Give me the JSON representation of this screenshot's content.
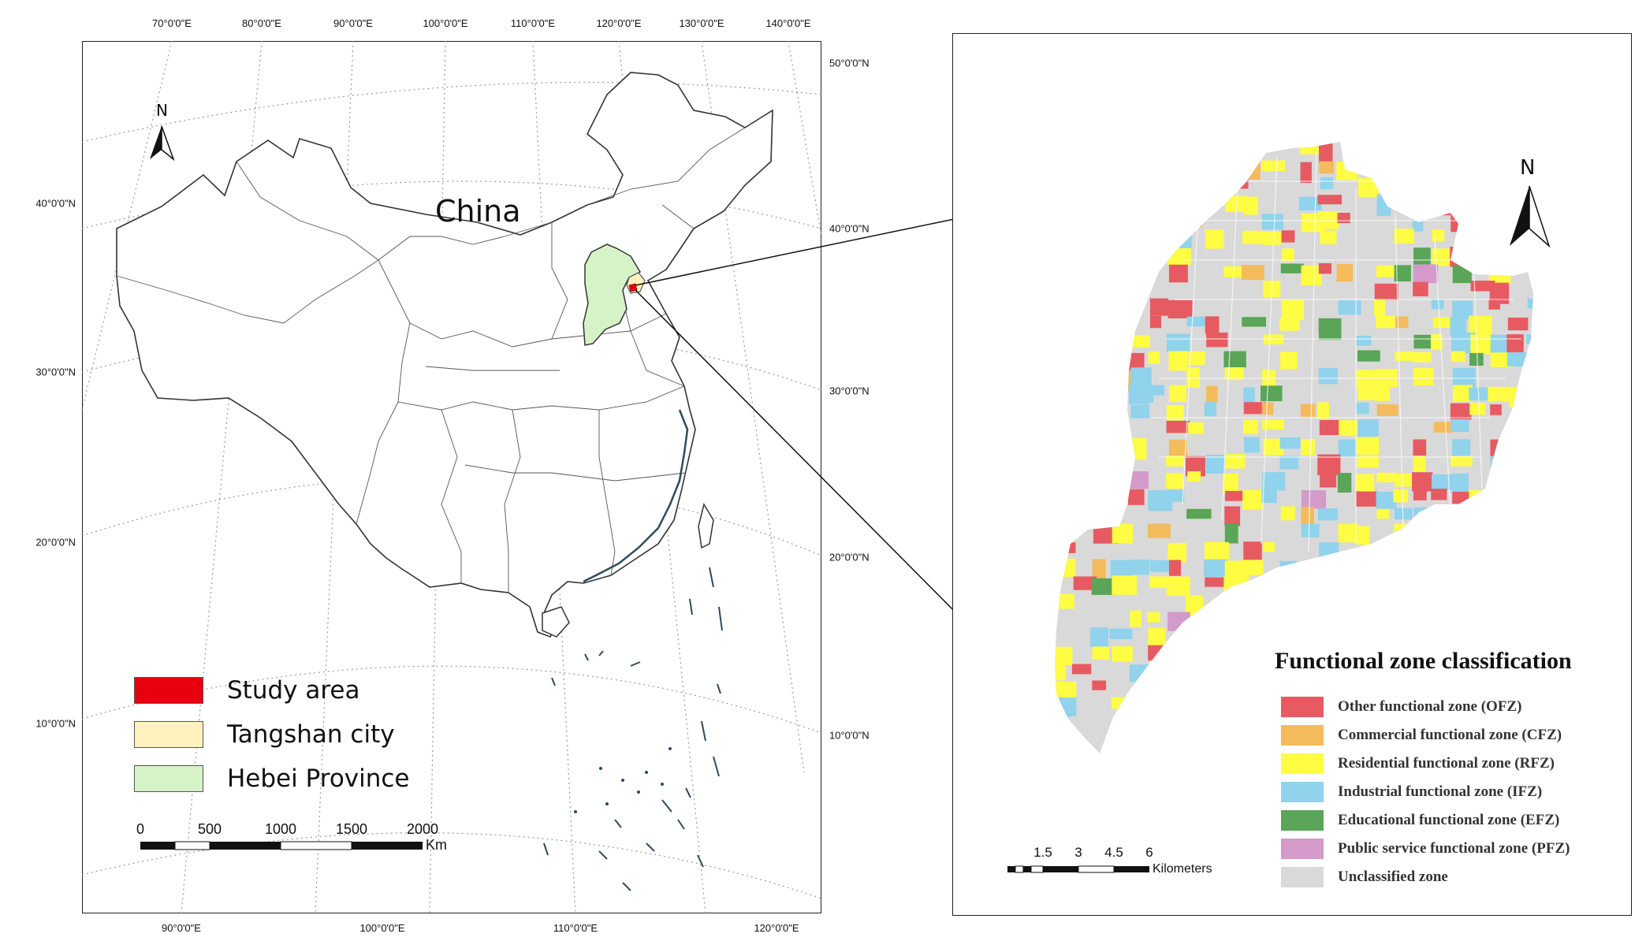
{
  "left_map": {
    "country_label": "China",
    "north_label": "N",
    "top_lon_labels": [
      "70°0'0\"E",
      "80°0'0\"E",
      "90°0'0\"E",
      "100°0'0\"E",
      "110°0'0\"E",
      "120°0'0\"E",
      "130°0'0\"E",
      "140°0'0\"E"
    ],
    "bottom_lon_labels": [
      "90°0'0\"E",
      "100°0'0\"E",
      "110°0'0\"E",
      "120°0'0\"E"
    ],
    "left_lat_labels": [
      "40°0'0\"N",
      "30°0'0\"N",
      "20°0'0\"N",
      "10°0'0\"N"
    ],
    "right_lat_labels": [
      "50°0'0\"N",
      "40°0'0\"N",
      "30°0'0\"N",
      "20°0'0\"N",
      "10°0'0\"N"
    ],
    "legend": [
      {
        "label": "Study area",
        "color": "#e8000e"
      },
      {
        "label": "Tangshan city",
        "color": "#fff2bf"
      },
      {
        "label": "Hebei Province",
        "color": "#d6f3c8"
      }
    ],
    "scale": {
      "ticks": [
        "0",
        "500",
        "1000",
        "1500",
        "2000"
      ],
      "unit": "Km"
    }
  },
  "right_map": {
    "north_label": "N",
    "legend_title": "Functional zone classification",
    "legend": [
      {
        "label": "Other functional zone (OFZ)",
        "color": "#e65b61"
      },
      {
        "label": "Commercial functional zone (CFZ)",
        "color": "#f3bb5c"
      },
      {
        "label": "Residential functional zone (RFZ)",
        "color": "#fefc43"
      },
      {
        "label": "Industrial functional zone (IFZ)",
        "color": "#91d2ec"
      },
      {
        "label": "Educational functional zone (EFZ)",
        "color": "#5aa557"
      },
      {
        "label": "Public service functional zone (PFZ)",
        "color": "#d49ac9"
      },
      {
        "label": "Unclassified zone",
        "color": "#d9d9d9"
      }
    ],
    "scale": {
      "ticks": [
        "1.5",
        "3",
        "4.5",
        "6"
      ],
      "unit": "Kilometers"
    }
  }
}
